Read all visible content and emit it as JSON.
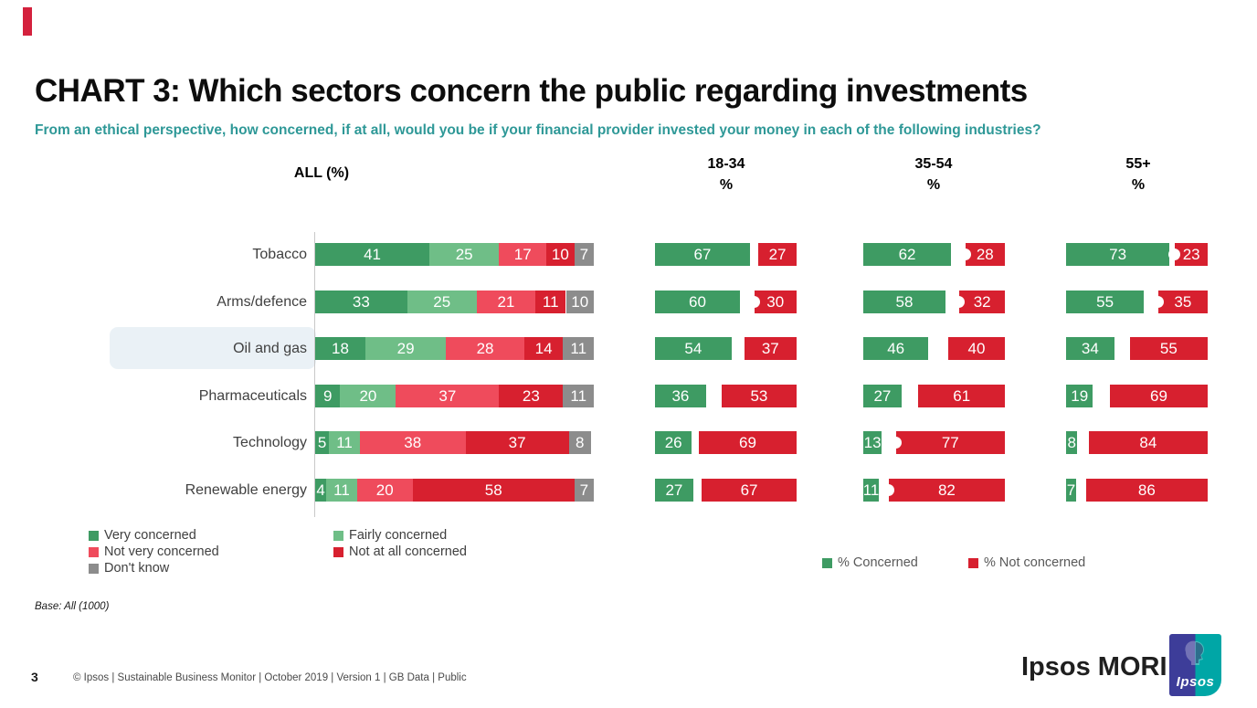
{
  "page": {
    "number": "3",
    "footer": "© Ipsos | Sustainable Business Monitor | October 2019 | Version 1 | GB Data | Public"
  },
  "header": {
    "title": "CHART 3: Which sectors concern the public regarding investments",
    "subtitle": "From an ethical perspective, how concerned, if at all, would you be if your financial provider invested your money in each of the following industries?"
  },
  "brand": {
    "logo_text": "Ipsos MORI",
    "logo_mark": "Ipsos",
    "indigo": "#3d3d99",
    "teal": "#00a6a6",
    "accent_red": "#d4213d"
  },
  "chart_data": {
    "type": "bar",
    "title": "CHART 3: Which sectors concern the public regarding investments",
    "categories": [
      "Tobacco",
      "Arms/defence",
      "Oil and gas",
      "Pharmaceuticals",
      "Technology",
      "Renewable energy"
    ],
    "highlighted_category": "Oil and gas",
    "all_breakdown": {
      "column_header": "ALL (%)",
      "stacked": true,
      "xlim": [
        0,
        100
      ],
      "series": [
        {
          "name": "Very concerned",
          "color": "#3e9b63",
          "values": [
            41,
            33,
            18,
            9,
            5,
            4
          ]
        },
        {
          "name": "Fairly concerned",
          "color": "#6fbe87",
          "values": [
            25,
            25,
            29,
            20,
            11,
            11
          ]
        },
        {
          "name": "Not very concerned",
          "color": "#ef4b5c",
          "values": [
            17,
            21,
            28,
            37,
            38,
            20
          ]
        },
        {
          "name": "Not at all concerned",
          "color": "#d7202f",
          "values": [
            10,
            11,
            14,
            23,
            37,
            58
          ]
        },
        {
          "name": "Don't know",
          "color": "#8c8c8c",
          "values": [
            7,
            10,
            11,
            11,
            8,
            7
          ]
        }
      ]
    },
    "age_groups": [
      {
        "label": "18-34",
        "unit": "%",
        "concerned": [
          67,
          60,
          54,
          36,
          26,
          27
        ],
        "not_concerned": [
          27,
          30,
          37,
          53,
          69,
          67
        ],
        "junction_marks": [
          false,
          true,
          false,
          false,
          false,
          false
        ]
      },
      {
        "label": "35-54",
        "unit": "%",
        "concerned": [
          62,
          58,
          46,
          27,
          13,
          11
        ],
        "not_concerned": [
          28,
          32,
          40,
          61,
          77,
          82
        ],
        "junction_marks": [
          true,
          true,
          false,
          false,
          true,
          true
        ]
      },
      {
        "label": "55+",
        "unit": "%",
        "concerned": [
          73,
          55,
          34,
          19,
          8,
          7
        ],
        "not_concerned": [
          23,
          35,
          55,
          69,
          84,
          86
        ],
        "junction_marks": [
          true,
          true,
          false,
          false,
          false,
          false
        ]
      }
    ],
    "legend_right": [
      {
        "label": "% Concerned",
        "color": "#3e9b63"
      },
      {
        "label": "% Not concerned",
        "color": "#d7202f"
      }
    ],
    "base_note": "Base: All (1000)",
    "colors": {
      "very_concerned": "#3e9b63",
      "fairly_concerned": "#6fbe87",
      "not_very_concerned": "#ef4b5c",
      "not_at_all_concerned": "#d7202f",
      "dont_know": "#8c8c8c"
    }
  }
}
